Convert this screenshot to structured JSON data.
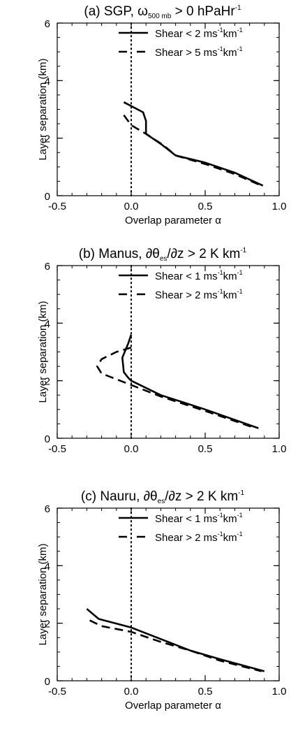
{
  "chart_data": [
    {
      "type": "line",
      "title": {
        "pre": "(a) SGP, ",
        "omega": "ω",
        "omega_sub": "500 mb",
        "post": " > 0 hPaHr",
        "sup": "-1"
      },
      "xlabel": "Overlap parameter α",
      "ylabel": "Layer separation (km)",
      "xlim": [
        -0.5,
        1.0
      ],
      "ylim": [
        0,
        6
      ],
      "xticks": [
        "-0.5",
        "0.0",
        "0.5",
        "1.0"
      ],
      "yticks": [
        "0",
        "2",
        "4",
        "6"
      ],
      "reference_line_x": 0,
      "legend": [
        {
          "main": "Shear < 2 ms",
          "sup1": "-1",
          "mid": "km",
          "sup2": "-1",
          "dash": false
        },
        {
          "main": "Shear > 5 ms",
          "sup1": "-1",
          "mid": "km",
          "sup2": "-1",
          "dash": true
        }
      ],
      "series": [
        {
          "name": "Shear < 2 ms-1km-1",
          "style": "solid",
          "x": [
            -0.05,
            0.08,
            0.1,
            0.1,
            0.2,
            0.3,
            0.5,
            0.7,
            0.89
          ],
          "y": [
            3.25,
            2.9,
            2.6,
            2.15,
            1.8,
            1.4,
            1.15,
            0.8,
            0.35
          ]
        },
        {
          "name": "Shear > 5 ms-1km-1",
          "style": "dashed",
          "x": [
            -0.05,
            0.0,
            0.1,
            0.22,
            0.3,
            0.5,
            0.7,
            0.88
          ],
          "y": [
            2.8,
            2.45,
            2.15,
            1.75,
            1.4,
            1.1,
            0.75,
            0.35
          ]
        }
      ]
    },
    {
      "type": "line",
      "title": {
        "pre": "(b) Manus, ",
        "mid": "∂θ",
        "sub": "es",
        "post": "/∂z > 2 K km",
        "sup": "-1"
      },
      "xlabel": "",
      "ylabel": "Layer separation (km)",
      "xlim": [
        -0.5,
        1.0
      ],
      "ylim": [
        0,
        6
      ],
      "xticks": [
        "-0.5",
        "0.0",
        "0.5",
        "1.0"
      ],
      "yticks": [
        "0",
        "2",
        "4",
        "6"
      ],
      "reference_line_x": 0,
      "legend": [
        {
          "main": "Shear < 1 ms",
          "sup1": "-1",
          "mid": "km",
          "sup2": "-1",
          "dash": false
        },
        {
          "main": "Shear > 2 ms",
          "sup1": "-1",
          "mid": "km",
          "sup2": "-1",
          "dash": true
        }
      ],
      "series": [
        {
          "name": "Shear < 1 ms-1km-1",
          "style": "solid",
          "x": [
            0.0,
            -0.02,
            -0.06,
            -0.05,
            -0.02,
            0.0,
            0.2,
            0.5,
            0.86
          ],
          "y": [
            3.6,
            3.3,
            2.8,
            2.3,
            2.1,
            2.0,
            1.5,
            1.0,
            0.35
          ]
        },
        {
          "name": "Shear > 2 ms-1km-1",
          "style": "dashed",
          "x": [
            0.0,
            -0.1,
            -0.2,
            -0.23,
            -0.2,
            -0.05,
            0.2,
            0.5,
            0.84
          ],
          "y": [
            3.15,
            3.0,
            2.75,
            2.5,
            2.25,
            1.95,
            1.45,
            0.95,
            0.35
          ]
        }
      ]
    },
    {
      "type": "line",
      "title": {
        "pre": "(c) Nauru, ",
        "mid": "∂θ",
        "sub": "es",
        "post": "/∂z > 2 K km",
        "sup": "-1"
      },
      "xlabel": "Overlap parameter α",
      "ylabel": "Layer separation (km)",
      "xlim": [
        -0.5,
        1.0
      ],
      "ylim": [
        0,
        6
      ],
      "xticks": [
        "-0.5",
        "0.0",
        "0.5",
        "1.0"
      ],
      "yticks": [
        "0",
        "2",
        "4",
        "6"
      ],
      "reference_line_x": 0,
      "legend": [
        {
          "main": "Shear < 1 ms",
          "sup1": "-1",
          "mid": "km",
          "sup2": "-1",
          "dash": false
        },
        {
          "main": "Shear > 2 ms",
          "sup1": "-1",
          "mid": "km",
          "sup2": "-1",
          "dash": true
        }
      ],
      "series": [
        {
          "name": "Shear < 1 ms-1km-1",
          "style": "solid",
          "x": [
            -0.3,
            -0.22,
            0.0,
            0.2,
            0.4,
            0.6,
            0.9
          ],
          "y": [
            2.5,
            2.15,
            1.85,
            1.45,
            1.05,
            0.75,
            0.33
          ]
        },
        {
          "name": "Shear > 2 ms-1km-1",
          "style": "dashed",
          "x": [
            -0.28,
            -0.2,
            0.0,
            0.2,
            0.4,
            0.6,
            0.88
          ],
          "y": [
            2.1,
            1.9,
            1.7,
            1.35,
            1.05,
            0.7,
            0.33
          ]
        }
      ]
    }
  ]
}
